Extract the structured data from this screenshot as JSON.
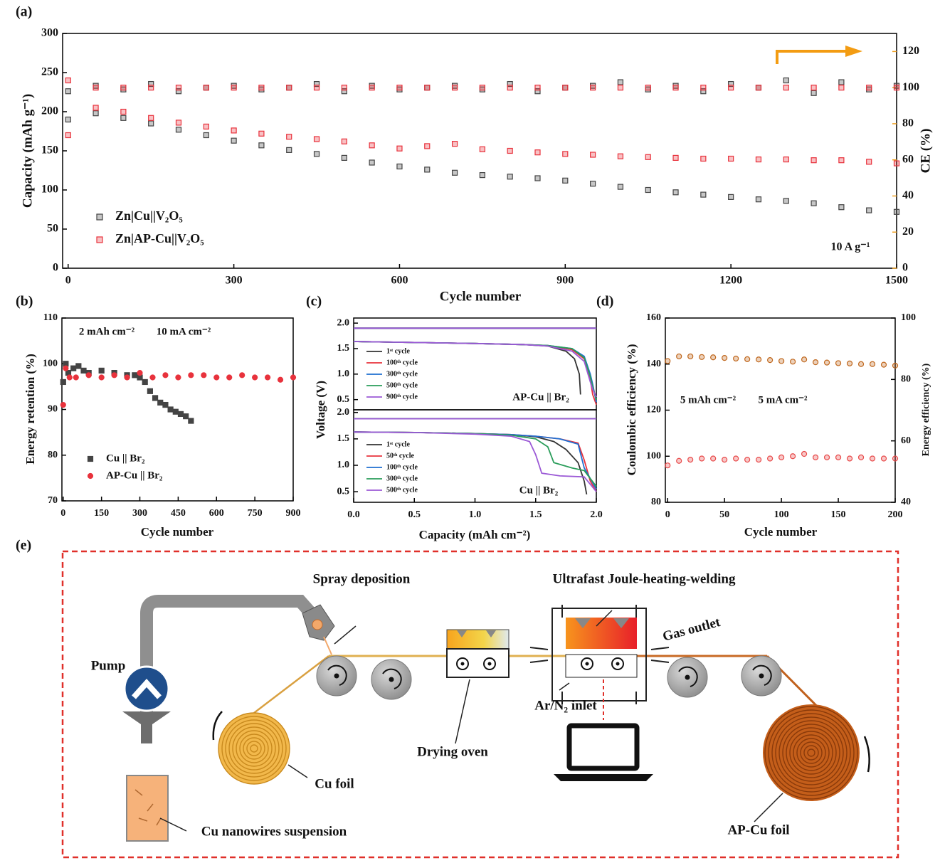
{
  "chart_data": [
    {
      "type": "scatter",
      "panel_label": "(a)",
      "xlabel": "Cycle number",
      "ylabel": "Capacity (mAh g⁻¹)",
      "y2label": "CE (%)",
      "y2label_color": "#f0a020",
      "y2tick_color": "#f0a020",
      "xlim": [
        -10,
        1500
      ],
      "xticks": [
        0,
        300,
        600,
        900,
        1200,
        1500
      ],
      "ylim": [
        0,
        300
      ],
      "yticks": [
        0,
        50,
        100,
        150,
        200,
        250,
        300
      ],
      "y2lim": [
        0,
        130
      ],
      "y2ticks": [
        0,
        20,
        40,
        60,
        80,
        100,
        120
      ],
      "legend": "lower left",
      "annotations": [
        "10 A g⁻¹"
      ],
      "series": [
        {
          "name": "Zn|Cu||V₂O₅",
          "color": "#444444",
          "marker": "square",
          "filled": false,
          "x": [
            0,
            50,
            100,
            150,
            200,
            250,
            300,
            350,
            400,
            450,
            500,
            550,
            600,
            650,
            700,
            750,
            800,
            850,
            900,
            950,
            1000,
            1050,
            1100,
            1150,
            1200,
            1250,
            1300,
            1350,
            1400,
            1450,
            1500
          ],
          "values": [
            190,
            198,
            192,
            185,
            177,
            170,
            163,
            157,
            151,
            146,
            141,
            135,
            130,
            126,
            122,
            119,
            117,
            115,
            112,
            108,
            104,
            100,
            97,
            94,
            91,
            88,
            86,
            83,
            78,
            74,
            72
          ]
        },
        {
          "name": "Zn|AP-Cu||V₂O₅",
          "color": "#e8323c",
          "marker": "square",
          "filled": false,
          "x": [
            0,
            50,
            100,
            150,
            200,
            250,
            300,
            350,
            400,
            450,
            500,
            550,
            600,
            650,
            700,
            750,
            800,
            850,
            900,
            950,
            1000,
            1050,
            1100,
            1150,
            1200,
            1250,
            1300,
            1350,
            1400,
            1450,
            1500
          ],
          "values": [
            170,
            205,
            200,
            192,
            186,
            181,
            176,
            172,
            168,
            165,
            162,
            157,
            153,
            156,
            159,
            152,
            150,
            148,
            146,
            145,
            143,
            142,
            141,
            140,
            140,
            139,
            139,
            138,
            138,
            136,
            134
          ]
        },
        {
          "color": "#444444",
          "marker": "square",
          "filled": false,
          "axis": "y2",
          "x": [
            0,
            50,
            100,
            150,
            200,
            250,
            300,
            350,
            400,
            450,
            500,
            550,
            600,
            650,
            700,
            750,
            800,
            850,
            900,
            950,
            1000,
            1050,
            1100,
            1150,
            1200,
            1250,
            1300,
            1350,
            1400,
            1450,
            1500
          ],
          "values": [
            98,
            101,
            99,
            102,
            98,
            100,
            101,
            99,
            100,
            102,
            98,
            101,
            99,
            100,
            101,
            99,
            102,
            98,
            100,
            101,
            103,
            99,
            101,
            98,
            102,
            100,
            104,
            97,
            103,
            99,
            101
          ]
        },
        {
          "color": "#e8323c",
          "marker": "square",
          "filled": false,
          "axis": "y2",
          "x": [
            0,
            50,
            100,
            150,
            200,
            250,
            300,
            350,
            400,
            450,
            500,
            550,
            600,
            650,
            700,
            750,
            800,
            850,
            900,
            950,
            1000,
            1050,
            1100,
            1150,
            1200,
            1250,
            1300,
            1350,
            1400,
            1450,
            1500
          ],
          "values": [
            104,
            100,
            100,
            100,
            100,
            100,
            100,
            100,
            100,
            100,
            100,
            100,
            100,
            100,
            100,
            100,
            100,
            100,
            100,
            100,
            100,
            100,
            100,
            100,
            100,
            100,
            100,
            100,
            100,
            100,
            100
          ]
        }
      ]
    },
    {
      "type": "scatter",
      "panel_label": "(b)",
      "xlabel": "Cycle number",
      "ylabel": "Energy retention (%)",
      "xlim": [
        -5,
        900
      ],
      "xticks": [
        0,
        150,
        300,
        450,
        600,
        750,
        900
      ],
      "ylim": [
        70,
        110
      ],
      "yticks": [
        70,
        80,
        90,
        100,
        110
      ],
      "legend": "lower left",
      "annotations": [
        "2 mAh cm⁻²",
        "10 mA cm⁻²"
      ],
      "series": [
        {
          "name": "Cu || Br₂",
          "color": "#444444",
          "marker": "square",
          "filled": true,
          "x": [
            0,
            10,
            20,
            40,
            60,
            80,
            100,
            150,
            200,
            250,
            280,
            300,
            320,
            340,
            360,
            380,
            400,
            420,
            440,
            460,
            480,
            500
          ],
          "values": [
            96,
            100,
            98,
            99,
            99.5,
            98.5,
            98,
            98.5,
            98,
            97.5,
            97.5,
            97,
            96,
            94,
            92.5,
            91.5,
            91,
            90,
            89.5,
            89,
            88.5,
            87.5
          ]
        },
        {
          "name": "AP-Cu || Br₂",
          "color": "#e8323c",
          "marker": "circle",
          "filled": true,
          "x": [
            0,
            10,
            25,
            50,
            100,
            150,
            200,
            250,
            300,
            350,
            400,
            450,
            500,
            550,
            600,
            650,
            700,
            750,
            800,
            850,
            900
          ],
          "values": [
            91,
            99,
            97,
            97,
            97.5,
            97,
            97.5,
            97,
            98,
            97,
            97.5,
            97,
            97.5,
            97.5,
            97,
            97,
            97.5,
            97,
            97,
            96.5,
            97
          ]
        }
      ]
    },
    {
      "type": "line",
      "panel_label": "(c)",
      "ylabel": "Voltage (V)",
      "xlim": [
        0,
        2
      ],
      "ylim": [
        0.3,
        2.1
      ],
      "yticks": [
        0.5,
        {
          "value": 1,
          "label": "1.0"
        },
        1.5,
        {
          "value": 2,
          "label": "2.0"
        }
      ],
      "legend": "upper left",
      "annotations": [
        "AP-Cu || Br₂"
      ],
      "series": [
        {
          "name": "1ˢᵗ cycle",
          "color": "#333333",
          "x": [
            0,
            0.5,
            1.0,
            1.4,
            1.6,
            1.75,
            1.82,
            1.86,
            1.87,
            1.87,
            0,
            2.0
          ],
          "values": [
            1.64,
            1.62,
            1.6,
            1.58,
            1.55,
            1.45,
            1.3,
            1.0,
            0.6,
            null,
            1.9,
            1.9
          ]
        },
        {
          "name": "100ᵗʰ cycle",
          "color": "#e8323c",
          "x": [
            0,
            0.5,
            1.0,
            1.4,
            1.6,
            1.8,
            1.9,
            1.95,
            1.97,
            2.0,
            2.0,
            0,
            2.0
          ],
          "values": [
            1.64,
            1.62,
            1.6,
            1.58,
            1.56,
            1.48,
            1.3,
            0.9,
            0.6,
            0.4,
            null,
            1.9,
            1.9
          ]
        },
        {
          "name": "300ᵗʰ cycle",
          "color": "#1f6fd1",
          "x": [
            0,
            0.5,
            1.0,
            1.4,
            1.6,
            1.8,
            1.9,
            1.95,
            1.97,
            2.0,
            2.0,
            0,
            2.0
          ],
          "values": [
            1.64,
            1.62,
            1.6,
            1.58,
            1.56,
            1.5,
            1.35,
            1.0,
            0.8,
            0.45,
            null,
            1.9,
            1.9
          ]
        },
        {
          "name": "500ᵗʰ cycle",
          "color": "#2a9d5a",
          "x": [
            0,
            0.5,
            1.0,
            1.4,
            1.6,
            1.8,
            1.9,
            1.95,
            1.97,
            2.0,
            2.0,
            0,
            2.0
          ],
          "values": [
            1.64,
            1.62,
            1.6,
            1.58,
            1.56,
            1.5,
            1.32,
            0.95,
            0.75,
            0.5,
            null,
            1.9,
            1.9
          ]
        },
        {
          "name": "900ᵗʰ cycle",
          "color": "#9b59d6",
          "x": [
            0,
            0.5,
            1.0,
            1.4,
            1.6,
            1.8,
            1.9,
            1.95,
            1.97,
            2.0,
            2.0,
            0,
            2.0
          ],
          "values": [
            1.64,
            1.62,
            1.6,
            1.58,
            1.55,
            1.45,
            1.25,
            0.85,
            0.7,
            0.55,
            null,
            1.9,
            1.9
          ]
        }
      ]
    },
    {
      "type": "line",
      "xlabel": "Capacity (mAh cm⁻²)",
      "xlim": [
        0,
        2
      ],
      "xticks": [
        {
          "value": 0,
          "label": "0.0"
        },
        0.5,
        {
          "value": 1,
          "label": "1.0"
        },
        1.5,
        {
          "value": 2,
          "label": "2.0"
        }
      ],
      "ylim": [
        0.3,
        2.05
      ],
      "yticks": [
        0.5,
        {
          "value": 1,
          "label": "1.0"
        },
        1.5,
        {
          "value": 2,
          "label": "2.0"
        }
      ],
      "legend": "upper left",
      "annotations": [
        "Cu || Br₂"
      ],
      "series": [
        {
          "name": "1ˢᵗ cycle",
          "color": "#333333",
          "x": [
            0,
            0.5,
            1.0,
            1.3,
            1.5,
            1.65,
            1.75,
            1.85,
            1.9,
            1.92,
            1.92,
            0,
            2.0
          ],
          "values": [
            1.63,
            1.62,
            1.6,
            1.58,
            1.54,
            1.45,
            1.3,
            1.05,
            0.7,
            0.45,
            null,
            1.88,
            1.88
          ]
        },
        {
          "name": "50ᵗʰ cycle",
          "color": "#e8323c",
          "x": [
            0,
            0.5,
            1.0,
            1.3,
            1.5,
            1.7,
            1.85,
            1.9,
            1.95,
            2.0,
            2.0,
            0,
            2.0
          ],
          "values": [
            1.63,
            1.62,
            1.6,
            1.58,
            1.55,
            1.5,
            1.42,
            1.1,
            0.7,
            0.5,
            null,
            1.88,
            1.88
          ]
        },
        {
          "name": "100ᵗʰ cycle",
          "color": "#1f6fd1",
          "x": [
            0,
            0.5,
            1.0,
            1.3,
            1.5,
            1.7,
            1.85,
            1.9,
            1.95,
            2.0,
            2.0,
            0,
            2.0
          ],
          "values": [
            1.63,
            1.62,
            1.6,
            1.58,
            1.55,
            1.5,
            1.4,
            0.95,
            0.75,
            0.55,
            null,
            1.88,
            1.88
          ]
        },
        {
          "name": "300ᵗʰ cycle",
          "color": "#2a9d5a",
          "x": [
            0,
            0.5,
            1.0,
            1.3,
            1.5,
            1.6,
            1.65,
            1.8,
            1.9,
            2.0,
            2.0,
            0,
            2.0
          ],
          "values": [
            1.63,
            1.62,
            1.6,
            1.57,
            1.5,
            1.35,
            1.05,
            0.95,
            0.9,
            0.6,
            null,
            1.88,
            1.88
          ]
        },
        {
          "name": "500ᵗʰ cycle",
          "color": "#9b59d6",
          "x": [
            0,
            0.5,
            1.0,
            1.3,
            1.45,
            1.5,
            1.55,
            1.7,
            1.9,
            2.0,
            2.0,
            0,
            2.0
          ],
          "values": [
            1.63,
            1.62,
            1.59,
            1.55,
            1.45,
            1.2,
            0.85,
            0.8,
            0.78,
            0.5,
            null,
            1.88,
            1.88
          ]
        }
      ]
    },
    {
      "type": "scatter",
      "panel_label": "(d)",
      "xlabel": "Cycle number",
      "ylabel": "Coulombic efficiency (%)",
      "y2label": "Energy efficiency (%)",
      "ylabel_color": "#e84a4a",
      "y2label_color": "#c0681e",
      "xlim": [
        -2,
        200
      ],
      "xticks": [
        0,
        50,
        100,
        150,
        200
      ],
      "ylim": [
        80,
        160
      ],
      "yticks": [
        80,
        100,
        120,
        140,
        160
      ],
      "y2lim": [
        40,
        100
      ],
      "y2ticks": [
        40,
        60,
        80,
        100
      ],
      "annotations": [
        "5 mAh cm⁻²",
        "5 mA cm⁻²"
      ],
      "series": [
        {
          "color": "#e84a4a",
          "marker": "circle",
          "filled": false,
          "x": [
            0,
            10,
            20,
            30,
            40,
            50,
            60,
            70,
            80,
            90,
            100,
            110,
            120,
            130,
            140,
            150,
            160,
            170,
            180,
            190,
            200
          ],
          "values": [
            96,
            98,
            98.5,
            99,
            99,
            98.5,
            99,
            98.5,
            98.5,
            99,
            99.5,
            100,
            101,
            99.5,
            99.5,
            99.5,
            99,
            99.5,
            99,
            99,
            99
          ]
        },
        {
          "color": "#c0681e",
          "marker": "circle",
          "filled": false,
          "axis": "y2",
          "x": [
            0,
            10,
            20,
            30,
            40,
            50,
            60,
            70,
            80,
            90,
            100,
            110,
            120,
            130,
            140,
            150,
            160,
            170,
            180,
            190,
            200
          ],
          "values": [
            86,
            87.5,
            87.5,
            87.3,
            87.2,
            87,
            86.8,
            86.6,
            86.5,
            86.3,
            86,
            85.8,
            86.5,
            85.6,
            85.5,
            85.3,
            85.2,
            85,
            85,
            84.8,
            84.5
          ]
        }
      ]
    }
  ],
  "diagram": {
    "panel_label": "(e)",
    "labels": [
      "Spray deposition",
      "Ultrafast Joule-heating-welding",
      "Gas outlet",
      "Pump",
      "Ar/N₂ inlet",
      "Drying  oven",
      "Cu foil",
      "Cu nanowires suspension",
      "AP-Cu foil"
    ]
  }
}
